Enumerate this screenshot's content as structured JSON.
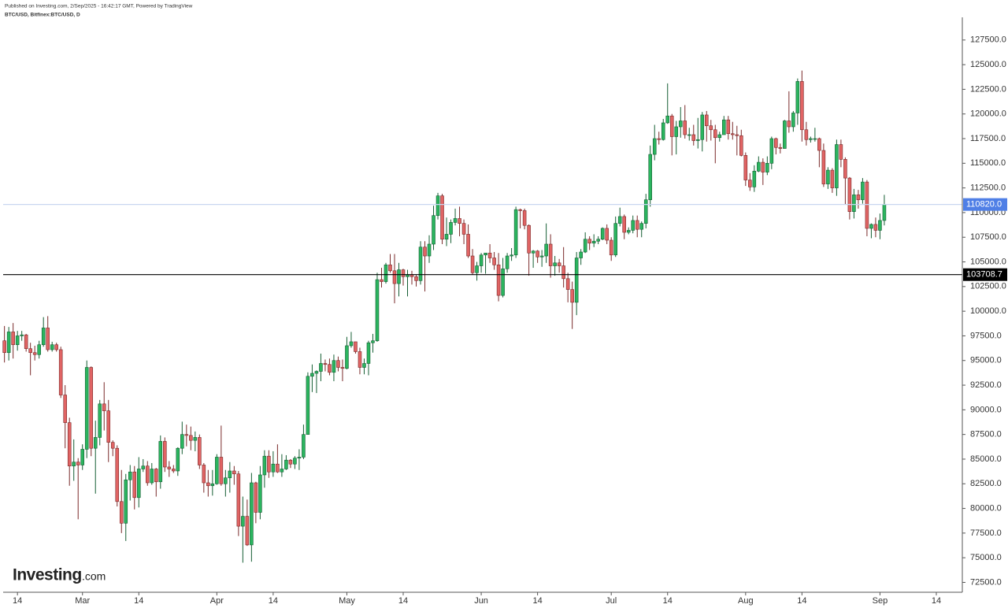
{
  "chart_data": {
    "type": "candlestick",
    "published": "Published on Investing.com, 2/Sep/2025 - 16:42:17 GMT, Powered by TradingView",
    "symbol": "BTC/USD, Bitfinex:BTC/USD, D",
    "logo": {
      "name": "Investing",
      "suffix": ".com"
    },
    "up_color": "#2bb55f",
    "down_color": "#e06464",
    "up_border": "#155e33",
    "down_border": "#7a2a2a",
    "xlim": [
      41.7,
      263
    ],
    "xticks": [
      {
        "value": 45,
        "label": "14"
      },
      {
        "value": 60,
        "label": "Mar"
      },
      {
        "value": 73,
        "label": "14"
      },
      {
        "value": 91,
        "label": "Apr"
      },
      {
        "value": 104,
        "label": "14"
      },
      {
        "value": 121,
        "label": "May"
      },
      {
        "value": 134,
        "label": "14"
      },
      {
        "value": 152,
        "label": "Jun"
      },
      {
        "value": 165,
        "label": "14"
      },
      {
        "value": 182,
        "label": "Jul"
      },
      {
        "value": 195,
        "label": "14"
      },
      {
        "value": 213,
        "label": "Aug"
      },
      {
        "value": 226,
        "label": "14"
      },
      {
        "value": 244,
        "label": "Sep"
      },
      {
        "value": 257,
        "label": "14"
      }
    ],
    "ylim": [
      71500,
      129800
    ],
    "yticks": [
      {
        "value": 72500,
        "label": "72500.0"
      },
      {
        "value": 75000,
        "label": "75000.0"
      },
      {
        "value": 77500,
        "label": "77500.0"
      },
      {
        "value": 80000,
        "label": "80000.0"
      },
      {
        "value": 82500,
        "label": "82500.0"
      },
      {
        "value": 85000,
        "label": "85000.0"
      },
      {
        "value": 87500,
        "label": "87500.0"
      },
      {
        "value": 90000,
        "label": "90000.0"
      },
      {
        "value": 92500,
        "label": "92500.0"
      },
      {
        "value": 95000,
        "label": "95000.0"
      },
      {
        "value": 97500,
        "label": "97500.0"
      },
      {
        "value": 100000,
        "label": "100000.0"
      },
      {
        "value": 102500,
        "label": "102500.0"
      },
      {
        "value": 105000,
        "label": "105000.0"
      },
      {
        "value": 107500,
        "label": "107500.0"
      },
      {
        "value": 110000,
        "label": "110000.0"
      },
      {
        "value": 112500,
        "label": "112500.0"
      },
      {
        "value": 115000,
        "label": "115000.0"
      },
      {
        "value": 117500,
        "label": "117500.0"
      },
      {
        "value": 120000,
        "label": "120000.0"
      },
      {
        "value": 122500,
        "label": "122500.0"
      },
      {
        "value": 125000,
        "label": "125000.0"
      },
      {
        "value": 127500,
        "label": "127500.0"
      }
    ],
    "price_lines": [
      {
        "value": 110820,
        "label": "110820.0",
        "color": "#c9d7f0",
        "label_color": "#4f7fe6"
      },
      {
        "value": 103708.7,
        "label": "103708.7",
        "color": "#000000",
        "label_color": "#000000"
      }
    ],
    "x": [
      42,
      43,
      44,
      45,
      46,
      47,
      48,
      49,
      50,
      51,
      52,
      53,
      54,
      55,
      56,
      57,
      58,
      59,
      60,
      61,
      62,
      63,
      64,
      65,
      66,
      67,
      68,
      69,
      70,
      71,
      72,
      73,
      74,
      75,
      76,
      77,
      78,
      79,
      80,
      81,
      82,
      83,
      84,
      85,
      86,
      87,
      88,
      89,
      90,
      91,
      92,
      93,
      94,
      95,
      96,
      97,
      98,
      99,
      100,
      101,
      102,
      103,
      104,
      105,
      106,
      107,
      108,
      109,
      110,
      111,
      112,
      113,
      114,
      115,
      116,
      117,
      118,
      119,
      120,
      121,
      122,
      123,
      124,
      125,
      126,
      127,
      128,
      129,
      130,
      131,
      132,
      133,
      134,
      135,
      136,
      137,
      138,
      139,
      140,
      141,
      142,
      143,
      144,
      145,
      146,
      147,
      148,
      149,
      150,
      151,
      152,
      153,
      154,
      155,
      156,
      157,
      158,
      159,
      160,
      161,
      162,
      163,
      164,
      165,
      166,
      167,
      168,
      169,
      170,
      171,
      172,
      173,
      174,
      175,
      176,
      177,
      178,
      179,
      180,
      181,
      182,
      183,
      184,
      185,
      186,
      187,
      188,
      189,
      190,
      191,
      192,
      193,
      194,
      195,
      196,
      197,
      198,
      199,
      200,
      201,
      202,
      203,
      204,
      205,
      206,
      207,
      208,
      209,
      210,
      211,
      212,
      213,
      214,
      215,
      216,
      217,
      218,
      219,
      220,
      221,
      222,
      223,
      224,
      225,
      226,
      227,
      228,
      229,
      230,
      231,
      232,
      233,
      234,
      235,
      236,
      237,
      238,
      239,
      240,
      241,
      242,
      243,
      244,
      245
    ],
    "open": [
      97000,
      95800,
      97900,
      96600,
      97500,
      97600,
      96200,
      95800,
      95600,
      96600,
      98300,
      96100,
      96600,
      96100,
      91500,
      88700,
      84300,
      84700,
      84400,
      86000,
      94300,
      86100,
      87200,
      90600,
      89900,
      86700,
      86100,
      80700,
      78500,
      82900,
      83700,
      81100,
      84000,
      84300,
      82600,
      84000,
      82700,
      86800,
      84200,
      84000,
      83800,
      86100,
      87500,
      87400,
      86900,
      87200,
      84400,
      82600,
      82300,
      82500,
      85200,
      82500,
      83100,
      83800,
      83500,
      78200,
      79200,
      76300,
      82600,
      79600,
      83400,
      85300,
      83700,
      84500,
      83700,
      84000,
      84900,
      84500,
      85100,
      85200,
      87500,
      93400,
      93700,
      93900,
      94700,
      94600,
      93800,
      95000,
      94300,
      94200,
      96500,
      96900,
      95900,
      94300,
      94700,
      96800,
      97000,
      103200,
      103000,
      104700,
      104100,
      102800,
      104200,
      103500,
      103700,
      103500,
      103100,
      106500,
      105600,
      106800,
      109700,
      111700,
      107300,
      107800,
      109000,
      109400,
      108900,
      107800,
      105600,
      103900,
      104600,
      105700,
      105900,
      105400,
      104700,
      101600,
      104300,
      105600,
      105700,
      110300,
      110200,
      108700,
      105900,
      106100,
      105500,
      105600,
      106800,
      104600,
      104900,
      104600,
      103300,
      102200,
      100900,
      105400,
      106000,
      107300,
      106900,
      107100,
      107300,
      108400,
      107200,
      105700,
      108900,
      109600,
      108000,
      108200,
      109200,
      108300,
      108900,
      111300,
      115900,
      117500,
      117400,
      119100,
      119800,
      117700,
      118700,
      119300,
      117900,
      117900,
      117300,
      117400,
      119900,
      118800,
      118400,
      117600,
      117900,
      119400,
      118000,
      117900,
      117800,
      115800,
      113300,
      112600,
      114200,
      115100,
      114100,
      115000,
      117500,
      116600,
      116500,
      119300,
      118700,
      120100,
      123300,
      118400,
      117400,
      117500,
      117500,
      116300,
      112900,
      114300,
      112500,
      116900,
      115400,
      113500,
      110100,
      111800,
      111300,
      113100,
      108400,
      108800,
      108200,
      109200
    ],
    "high": [
      98500,
      98400,
      98800,
      98000,
      98000,
      97700,
      96800,
      96500,
      97000,
      99400,
      99500,
      96900,
      96800,
      96400,
      92500,
      89200,
      87000,
      85100,
      86500,
      95000,
      94400,
      88900,
      91000,
      92800,
      91000,
      86900,
      86400,
      83900,
      83500,
      84400,
      84300,
      85200,
      85000,
      84800,
      84600,
      84100,
      87400,
      87200,
      84800,
      84400,
      86200,
      88800,
      88500,
      88300,
      87800,
      87500,
      84600,
      83900,
      83900,
      85500,
      88400,
      83900,
      84700,
      84300,
      83800,
      81200,
      80900,
      83600,
      82700,
      84300,
      85900,
      85900,
      85800,
      86500,
      85500,
      85400,
      85000,
      85300,
      86000,
      88500,
      93800,
      94600,
      94000,
      95700,
      95100,
      95200,
      95600,
      95400,
      95100,
      97400,
      97900,
      96900,
      96300,
      95200,
      97000,
      97700,
      103900,
      104400,
      104900,
      105800,
      105800,
      104900,
      104300,
      104200,
      104100,
      103700,
      107100,
      107100,
      107700,
      110700,
      112000,
      111900,
      109500,
      109300,
      110400,
      110600,
      109300,
      108800,
      106300,
      105000,
      105900,
      105900,
      106800,
      106000,
      105900,
      105400,
      105900,
      106400,
      110600,
      110400,
      110400,
      108800,
      106200,
      106200,
      106200,
      108900,
      107800,
      105600,
      105300,
      106500,
      103900,
      103000,
      106000,
      106300,
      108000,
      107600,
      107800,
      107600,
      108500,
      108800,
      107500,
      109600,
      110500,
      109800,
      108500,
      109700,
      109700,
      109100,
      111900,
      116800,
      118900,
      118200,
      119500,
      123100,
      120000,
      119300,
      120700,
      120900,
      118600,
      118900,
      119600,
      120200,
      120300,
      119400,
      118900,
      118200,
      119800,
      119800,
      119200,
      118800,
      118400,
      116100,
      114000,
      114800,
      115700,
      115500,
      115700,
      117700,
      117600,
      117000,
      119400,
      122300,
      120300,
      123600,
      124400,
      119200,
      117700,
      118600,
      117600,
      117000,
      114600,
      114500,
      117400,
      117400,
      115600,
      113600,
      112400,
      112300,
      113500,
      113300,
      108900,
      109500,
      109900,
      111800
    ],
    "low": [
      94800,
      95000,
      95200,
      96000,
      97000,
      95900,
      93500,
      95000,
      95200,
      96400,
      95900,
      95900,
      95900,
      91200,
      86100,
      82300,
      82800,
      78900,
      83900,
      85100,
      85300,
      81500,
      86400,
      87900,
      84700,
      85300,
      80200,
      77500,
      76700,
      80800,
      79900,
      80100,
      83700,
      82300,
      82400,
      81200,
      82000,
      83700,
      83200,
      83600,
      83300,
      85500,
      86300,
      85900,
      85800,
      84000,
      81600,
      81200,
      81300,
      82400,
      82300,
      81200,
      81600,
      82400,
      77200,
      74500,
      76200,
      74600,
      78500,
      78900,
      82100,
      83100,
      83200,
      83600,
      83200,
      83900,
      84100,
      84000,
      83900,
      85000,
      87500,
      91800,
      91700,
      92900,
      93900,
      93500,
      92900,
      93900,
      92900,
      94100,
      96300,
      95700,
      93600,
      93600,
      93500,
      95800,
      96900,
      102400,
      102800,
      103900,
      100800,
      101500,
      102600,
      101500,
      102700,
      102500,
      102700,
      102000,
      104900,
      106200,
      109300,
      106800,
      106600,
      106900,
      108700,
      107600,
      106800,
      105400,
      103700,
      103100,
      103900,
      103800,
      104900,
      104200,
      101000,
      101400,
      103900,
      105100,
      105400,
      108400,
      108300,
      103600,
      104400,
      104900,
      104500,
      104900,
      103400,
      103600,
      103900,
      102400,
      100900,
      98200,
      99600,
      104700,
      105900,
      106200,
      106500,
      106800,
      107200,
      106800,
      105100,
      105500,
      108600,
      107300,
      107800,
      107900,
      107500,
      107500,
      108400,
      110600,
      115300,
      116900,
      117300,
      119000,
      115800,
      115900,
      117600,
      117500,
      117300,
      116800,
      116500,
      116200,
      117200,
      117300,
      115000,
      117200,
      117900,
      117400,
      117400,
      115800,
      115700,
      112700,
      112200,
      112100,
      114100,
      112800,
      113800,
      114400,
      115900,
      116000,
      116500,
      118100,
      118200,
      118900,
      117200,
      116800,
      117100,
      117200,
      114600,
      112600,
      112400,
      112000,
      111700,
      114600,
      110800,
      109300,
      109400,
      110400,
      110900,
      107600,
      107400,
      107500,
      107300,
      108700
    ],
    "close": [
      95800,
      97900,
      96600,
      97500,
      97600,
      96200,
      95800,
      95600,
      96600,
      98300,
      96100,
      96600,
      96100,
      91500,
      88700,
      84300,
      84700,
      84400,
      86000,
      94300,
      86100,
      87200,
      90600,
      89900,
      86700,
      86100,
      80700,
      78500,
      82900,
      83700,
      81100,
      84000,
      84300,
      82600,
      84000,
      82700,
      86800,
      84200,
      84000,
      83800,
      86100,
      87500,
      87400,
      86900,
      87200,
      84400,
      82600,
      82300,
      82500,
      85200,
      82500,
      83100,
      83800,
      83500,
      78200,
      79200,
      76300,
      82600,
      79600,
      83400,
      85300,
      83700,
      84500,
      83700,
      84000,
      84900,
      84500,
      85100,
      85200,
      87500,
      93400,
      93700,
      93900,
      94700,
      94600,
      93800,
      95000,
      94300,
      94200,
      96500,
      96900,
      95900,
      94300,
      94700,
      96800,
      97000,
      103200,
      103000,
      104700,
      104100,
      102800,
      104200,
      103500,
      103700,
      103500,
      103100,
      106500,
      105600,
      106800,
      109700,
      111700,
      107300,
      107800,
      109000,
      109400,
      108900,
      107800,
      105600,
      103900,
      104600,
      105700,
      105900,
      105400,
      104700,
      101600,
      104300,
      105600,
      105700,
      110300,
      110200,
      108700,
      105900,
      106100,
      105500,
      105600,
      106800,
      104600,
      104900,
      104600,
      103300,
      102200,
      100900,
      105400,
      106000,
      107300,
      106900,
      107100,
      107300,
      108400,
      107200,
      105700,
      108900,
      109600,
      108000,
      108200,
      109200,
      108300,
      108900,
      111300,
      115900,
      117500,
      117400,
      119100,
      119800,
      117700,
      118700,
      119300,
      117900,
      117900,
      117300,
      117400,
      119900,
      118800,
      118400,
      117600,
      117900,
      119400,
      118000,
      117900,
      117800,
      115800,
      113300,
      112600,
      114200,
      115100,
      114100,
      115000,
      117500,
      116600,
      116500,
      119300,
      118700,
      120100,
      123300,
      118400,
      117400,
      117500,
      117500,
      116300,
      112900,
      114300,
      112500,
      116900,
      115400,
      113500,
      110100,
      111800,
      111300,
      113100,
      108400,
      108800,
      108200,
      109200,
      110820
    ]
  }
}
